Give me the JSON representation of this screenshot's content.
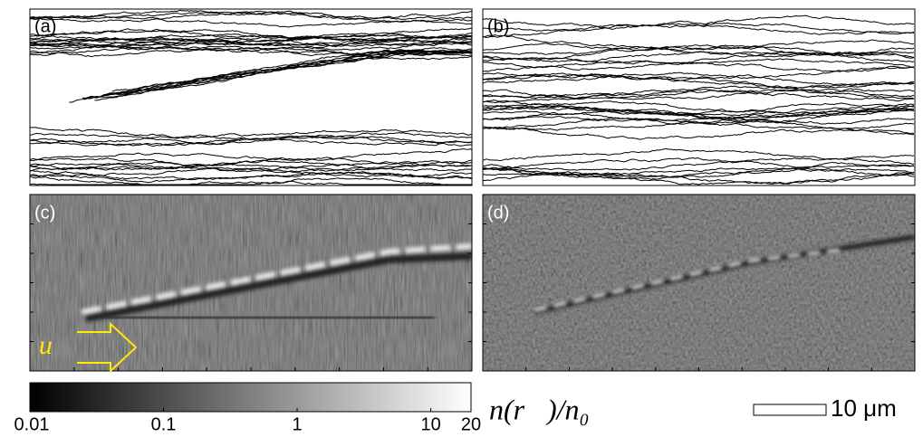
{
  "panels": [
    {
      "label": "(a)"
    },
    {
      "label": "(b)"
    },
    {
      "label": "(c)"
    },
    {
      "label": "(d)"
    }
  ],
  "arrow_label": "u⃗",
  "colorbar": {
    "scale": "log",
    "lim": [
      0.01,
      20
    ],
    "ticks": [
      0.01,
      0.1,
      1,
      10,
      20
    ],
    "label": "n(r⃗)/n₀"
  },
  "scale_bar": {
    "label": "10 μm"
  }
}
